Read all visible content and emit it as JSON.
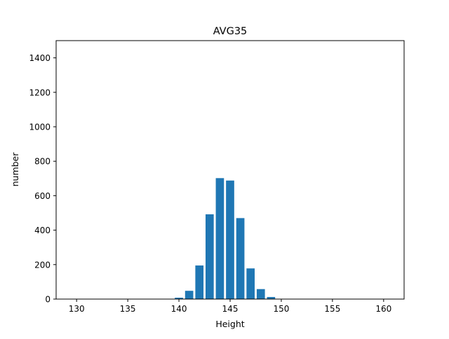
{
  "chart_data": {
    "type": "bar",
    "title": "AVG35",
    "xlabel": "Height",
    "ylabel": "number",
    "xlim": [
      128,
      162
    ],
    "ylim": [
      0,
      1500
    ],
    "xticks": [
      130,
      135,
      140,
      145,
      150,
      155,
      160
    ],
    "yticks": [
      0,
      200,
      400,
      600,
      800,
      1000,
      1200,
      1400
    ],
    "bar_width": 0.8,
    "bar_color": "#1f77b4",
    "x": [
      140,
      141,
      142,
      143,
      144,
      145,
      146,
      147,
      148,
      149
    ],
    "values": [
      8,
      48,
      195,
      492,
      702,
      688,
      470,
      178,
      58,
      12
    ],
    "grid": false
  }
}
